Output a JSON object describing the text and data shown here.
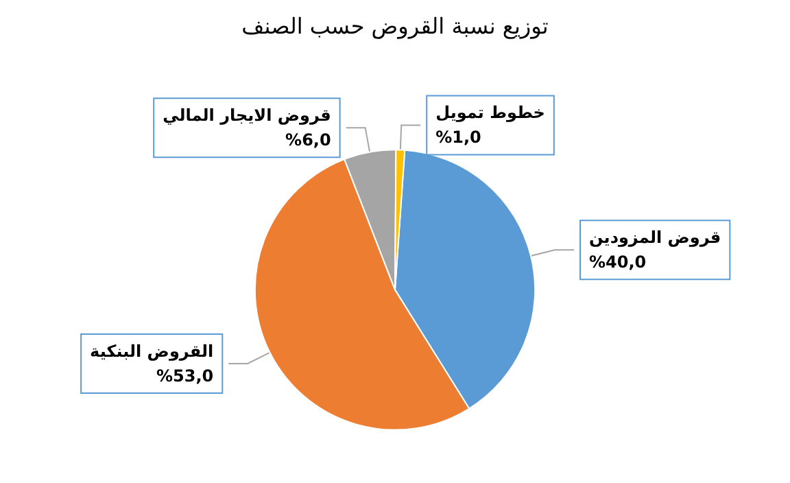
{
  "chart_data": {
    "type": "pie",
    "title": "توزيع نسبة القروض حسب الصنف",
    "categories": [
      "قروض المزودين",
      "القروض البنكية",
      "قروض الايجار المالي",
      "خطوط تمويل"
    ],
    "values": [
      40,
      53,
      6,
      1
    ],
    "value_labels": [
      "%40,0",
      "%53,0",
      "%6,0",
      "%1,0"
    ],
    "colors": [
      "#5b9bd5",
      "#ed7d31",
      "#a5a5a5",
      "#ffc000"
    ],
    "legend": false
  }
}
